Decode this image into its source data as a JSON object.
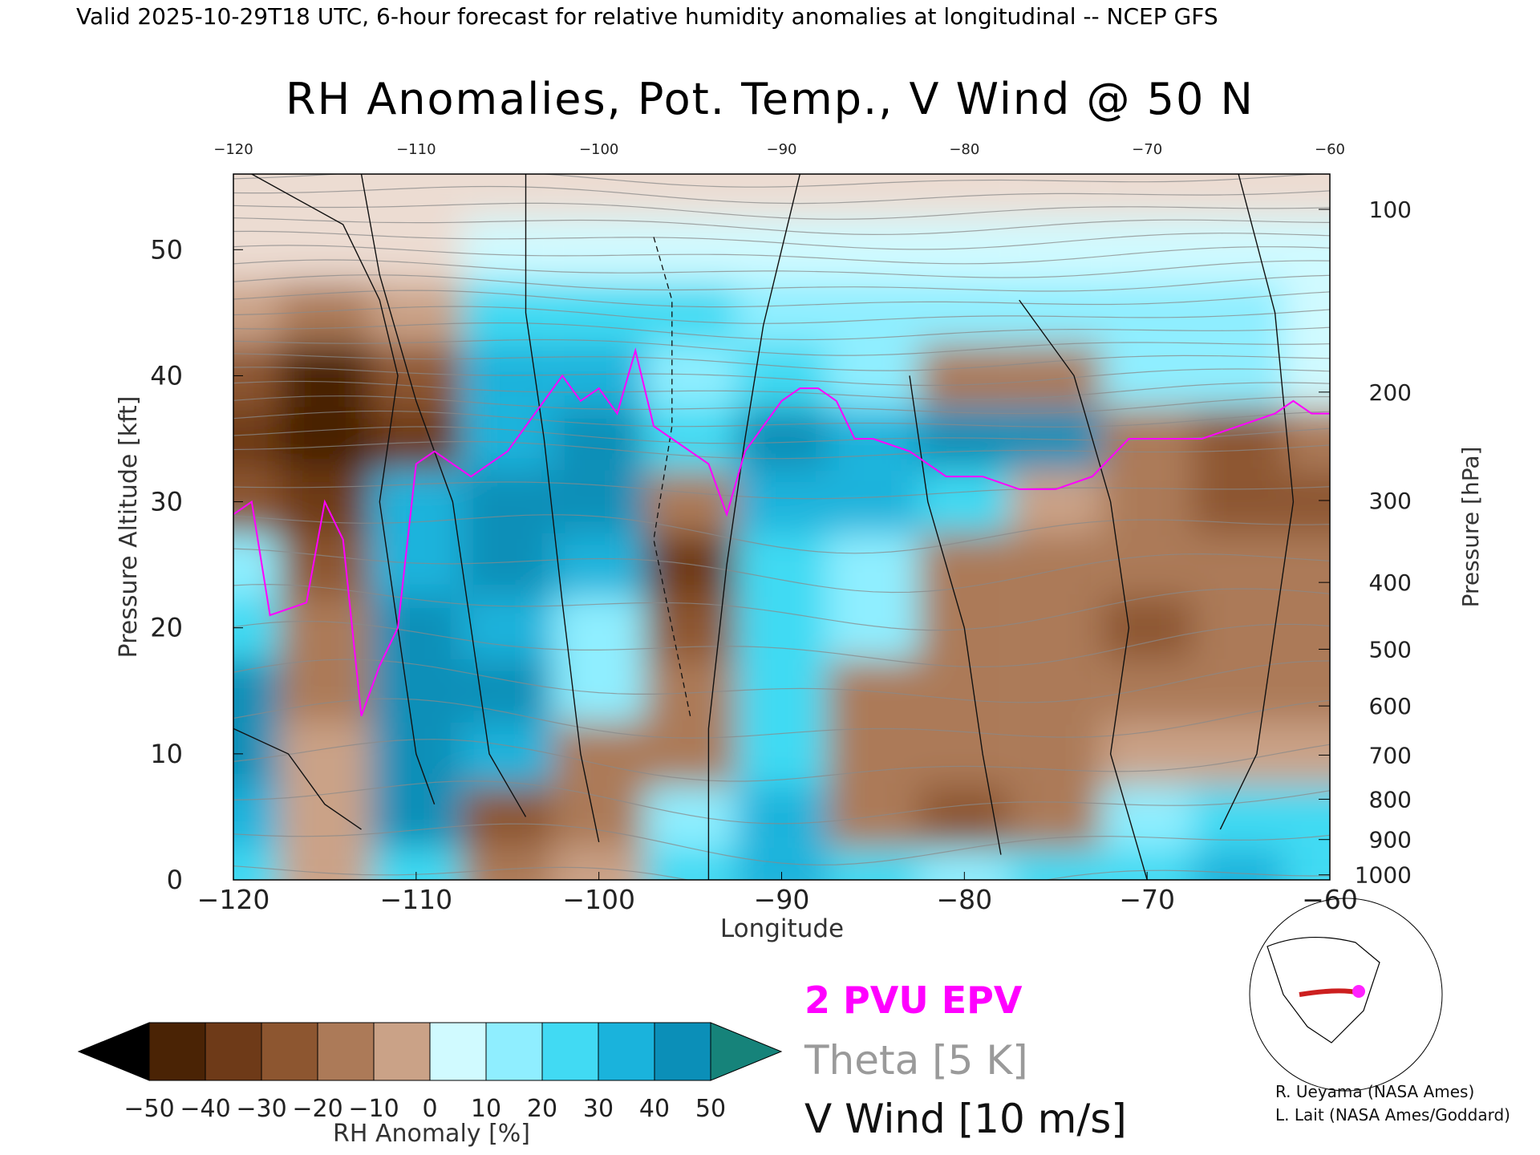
{
  "header": {
    "text": "Valid 2025-10-29T18 UTC, 6-hour forecast for relative humidity anomalies at longitudinal -- NCEP GFS"
  },
  "title": "RH Anomalies, Pot. Temp., V Wind @ 50 N",
  "chart_data": {
    "type": "heatmap",
    "title": "RH Anomalies, Pot. Temp., V Wind @ 50 N",
    "xlabel": "Longitude",
    "ylabel": "Pressure Altitude [kft]",
    "y2label": "Pressure [hPa]",
    "xlim": [
      -120,
      -60
    ],
    "ylim": [
      0,
      56
    ],
    "x_ticks": [
      "-120",
      "-110",
      "-100",
      "-90",
      "-80",
      "-70",
      "-60"
    ],
    "top_x_ticks": [
      "-120",
      "-110",
      "-100",
      "-90",
      "-80",
      "-70",
      "-60"
    ],
    "y_ticks": [
      "0",
      "10",
      "20",
      "30",
      "40",
      "50"
    ],
    "pressure_ticks": [
      {
        "label": "100",
        "kft": 53.2
      },
      {
        "label": "200",
        "kft": 38.7
      },
      {
        "label": "300",
        "kft": 30.1
      },
      {
        "label": "400",
        "kft": 23.6
      },
      {
        "label": "500",
        "kft": 18.3
      },
      {
        "label": "600",
        "kft": 13.8
      },
      {
        "label": "700",
        "kft": 9.9
      },
      {
        "label": "800",
        "kft": 6.4
      },
      {
        "label": "900",
        "kft": 3.2
      },
      {
        "label": "1000",
        "kft": 0.4
      }
    ],
    "colorbar": {
      "label": "RH Anomaly [%]",
      "ticks": [
        "-50",
        "-40",
        "-30",
        "-20",
        "-10",
        "0",
        "10",
        "20",
        "30",
        "40",
        "50"
      ],
      "colors": [
        "#4a2305",
        "#6e3a18",
        "#8d5630",
        "#ac7a58",
        "#caa287",
        "#ecdcd2",
        "#d0faff",
        "#8feeff",
        "#41daf3",
        "#1ab3dc",
        "#0b8fb8"
      ],
      "under_color": "#000000",
      "over_color": "#16837a"
    },
    "rh_anomaly": {
      "x": [
        -120,
        -115,
        -110,
        -105,
        -100,
        -95,
        -90,
        -85,
        -80,
        -75,
        -70,
        -65,
        -60
      ],
      "y": [
        0,
        5,
        10,
        15,
        20,
        25,
        30,
        35,
        40,
        45,
        50,
        55
      ],
      "z": [
        [
          25,
          -10,
          20,
          -15,
          -10,
          25,
          30,
          20,
          15,
          20,
          25,
          30,
          25
        ],
        [
          30,
          -5,
          40,
          -25,
          -20,
          10,
          30,
          -15,
          -30,
          -20,
          15,
          25,
          20
        ],
        [
          45,
          -10,
          50,
          35,
          -15,
          -20,
          25,
          -15,
          -20,
          -15,
          -10,
          -10,
          -10
        ],
        [
          40,
          -15,
          50,
          40,
          10,
          -20,
          20,
          -15,
          -20,
          -20,
          -20,
          -15,
          -15
        ],
        [
          20,
          -20,
          40,
          35,
          15,
          -30,
          20,
          10,
          -15,
          -20,
          -25,
          -20,
          -15
        ],
        [
          15,
          -25,
          35,
          40,
          30,
          -35,
          25,
          15,
          -15,
          -15,
          -20,
          -20,
          -20
        ],
        [
          -25,
          -35,
          30,
          45,
          50,
          -20,
          35,
          30,
          20,
          -10,
          -20,
          -25,
          -25
        ],
        [
          -35,
          -45,
          -35,
          35,
          45,
          20,
          40,
          30,
          45,
          40,
          -15,
          -25,
          -20
        ],
        [
          -30,
          -45,
          -30,
          30,
          35,
          15,
          20,
          15,
          -15,
          -20,
          15,
          10,
          5
        ],
        [
          -10,
          -15,
          -10,
          20,
          25,
          20,
          10,
          10,
          10,
          15,
          15,
          10,
          5
        ],
        [
          0,
          0,
          0,
          5,
          5,
          5,
          5,
          5,
          5,
          5,
          5,
          5,
          5
        ],
        [
          0,
          0,
          0,
          0,
          0,
          0,
          0,
          0,
          0,
          0,
          0,
          0,
          0
        ]
      ]
    },
    "theta_contours_K": [
      280,
      290,
      300,
      310,
      320,
      330,
      340,
      350,
      360,
      370,
      380,
      390,
      400,
      410,
      420
    ],
    "pv_2pvu_line": {
      "name": "2 PVU EPV",
      "x": [
        -120,
        -119,
        -118,
        -116,
        -115,
        -114,
        -113,
        -112,
        -111,
        -110,
        -109,
        -108,
        -107,
        -106,
        -105,
        -104,
        -103,
        -102,
        -101,
        -100,
        -99,
        -98,
        -97,
        -96,
        -95,
        -94,
        -93,
        -92,
        -91,
        -90,
        -89,
        -88,
        -87,
        -86,
        -85,
        -83,
        -81,
        -79,
        -77,
        -75,
        -73,
        -71,
        -69,
        -67,
        -65,
        -63,
        -62,
        -61,
        -60
      ],
      "y": [
        29,
        30,
        21,
        22,
        30,
        27,
        13,
        17,
        20,
        33,
        34,
        33,
        32,
        33,
        34,
        36,
        38,
        40,
        38,
        39,
        37,
        42,
        36,
        35,
        34,
        33,
        29,
        34,
        36,
        38,
        39,
        39,
        38,
        35,
        35,
        34,
        32,
        32,
        31,
        31,
        32,
        35,
        35,
        35,
        36,
        37,
        38,
        37,
        37
      ]
    },
    "v_wind_contours": {
      "name": "V Wind [10 m/s]",
      "levels": [
        -10,
        0,
        10
      ]
    },
    "legend": [
      "2 PVU EPV",
      "Theta [5 K]",
      "V Wind [10 m/s]"
    ]
  },
  "colorbar": {
    "label": "RH Anomaly [%]",
    "ticks": [
      "-50",
      "-40",
      "-30",
      "-20",
      "-10",
      "0",
      "10",
      "20",
      "30",
      "40",
      "50"
    ]
  },
  "legend": {
    "epv": "2 PVU EPV",
    "theta": "Theta [5 K]",
    "wind": "V Wind [10 m/s]"
  },
  "credits": {
    "line1": "R. Ueyama (NASA Ames)",
    "line2": "L. Lait (NASA Ames/Goddard)"
  }
}
